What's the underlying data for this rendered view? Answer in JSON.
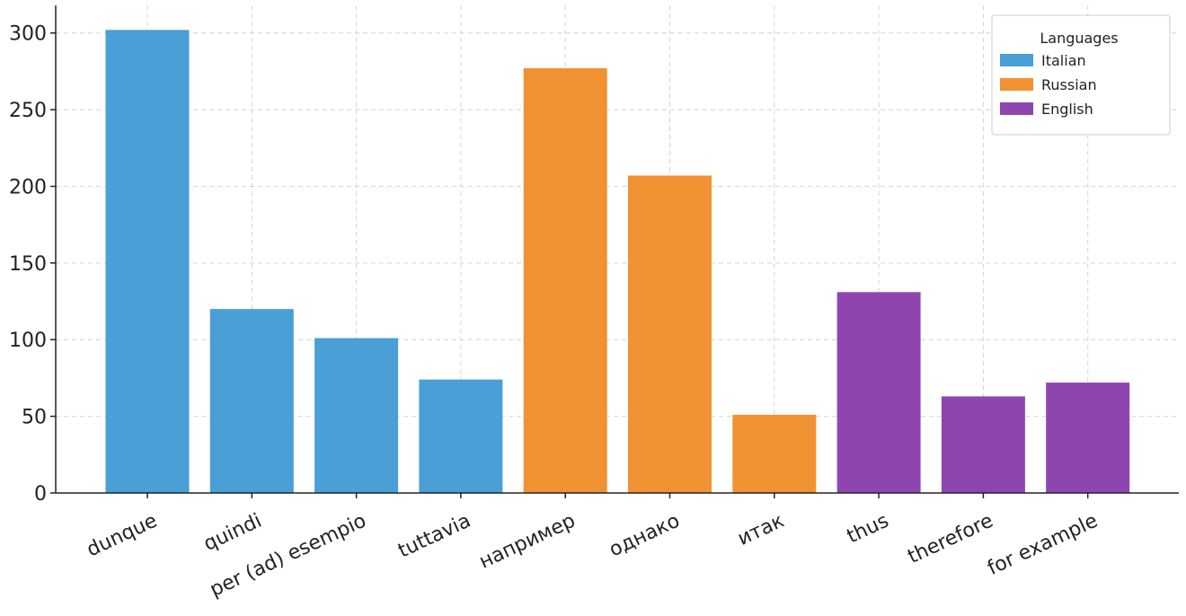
{
  "chart_data": {
    "type": "bar",
    "categories": [
      "dunque",
      "quindi",
      "per (ad) esempio",
      "tuttavia",
      "например",
      "однако",
      "итак",
      "thus",
      "therefore",
      "for example"
    ],
    "values": [
      302,
      120,
      101,
      74,
      277,
      207,
      51,
      131,
      63,
      72
    ],
    "category_series": [
      "Italian",
      "Italian",
      "Italian",
      "Italian",
      "Russian",
      "Russian",
      "Russian",
      "English",
      "English",
      "English"
    ],
    "series": [
      {
        "name": "Italian",
        "color": "#4a9fd6"
      },
      {
        "name": "Russian",
        "color": "#f19232"
      },
      {
        "name": "English",
        "color": "#8f45b0"
      }
    ],
    "title": "",
    "xlabel": "",
    "ylabel": "",
    "ylim": [
      0,
      318
    ],
    "yticks": [
      0,
      50,
      100,
      150,
      200,
      250,
      300
    ],
    "grid": true,
    "legend": {
      "title": "Languages",
      "placement": "top-right"
    }
  }
}
